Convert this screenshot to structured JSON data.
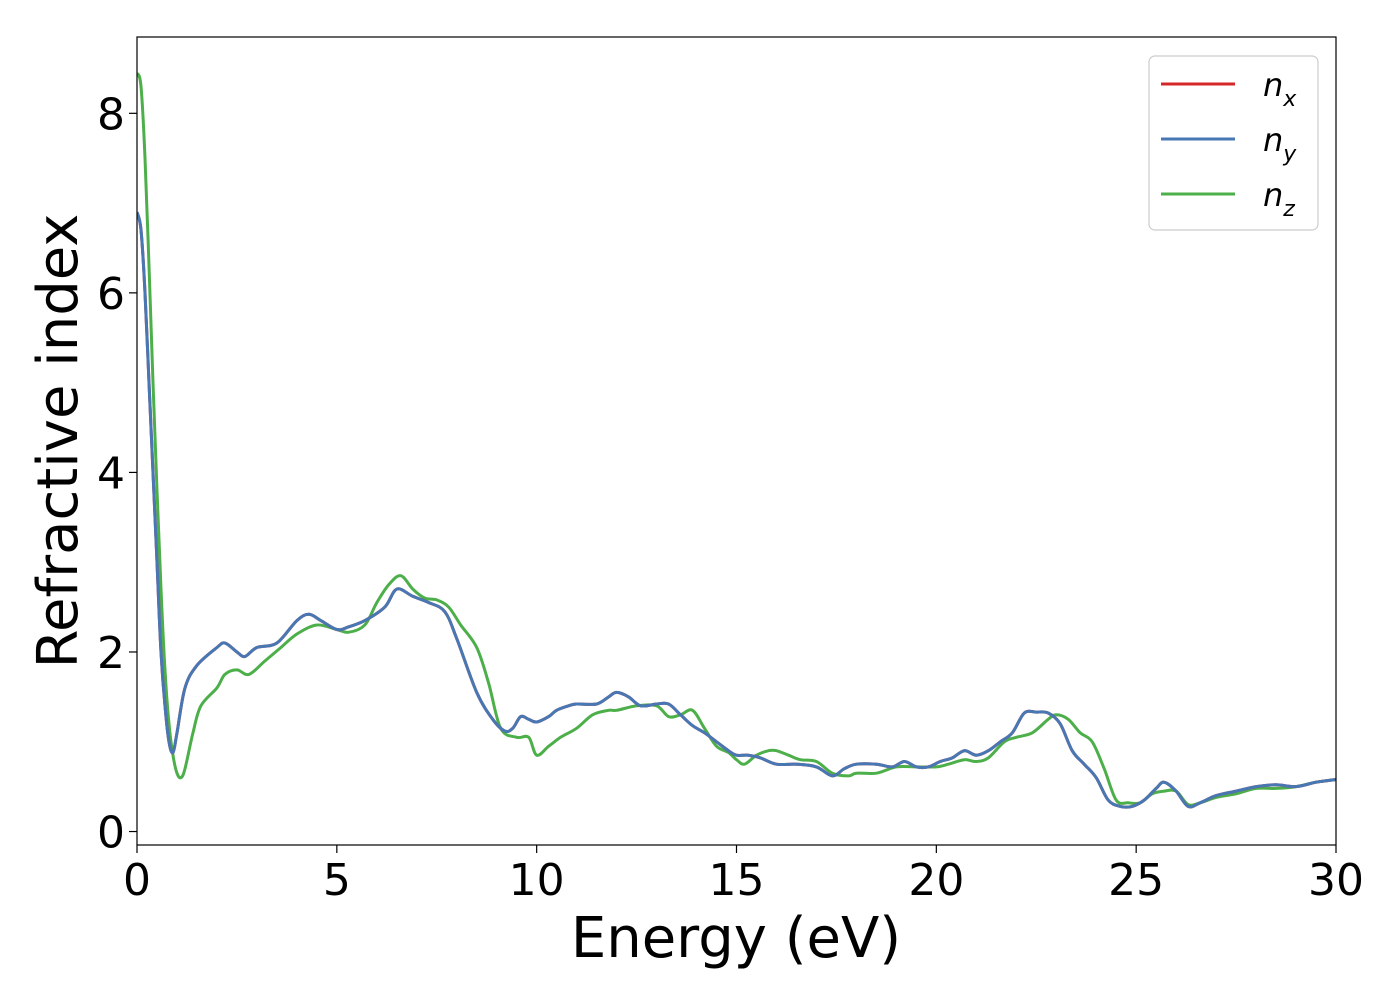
{
  "chart_data": {
    "type": "line",
    "title": "",
    "xlabel": "Energy (eV)",
    "ylabel": "Refractive index",
    "xlim": [
      0,
      30
    ],
    "ylim": [
      -0.15,
      8.85
    ],
    "xticks": [
      "0",
      "5",
      "10",
      "15",
      "20",
      "25",
      "30"
    ],
    "yticks": [
      "0",
      "2",
      "4",
      "6",
      "8"
    ],
    "xtick_values": [
      0,
      5,
      10,
      15,
      20,
      25,
      30
    ],
    "ytick_values": [
      0,
      2,
      4,
      6,
      8
    ],
    "grid": false,
    "legend_position": "top-right",
    "series": [
      {
        "name": "n_x",
        "label_base": "n",
        "label_sub": "x",
        "color": "#d62728",
        "x": [
          0,
          0.1,
          0.2,
          0.3,
          0.4,
          0.5,
          0.6,
          0.7,
          0.8,
          0.9,
          1.0,
          1.2,
          1.5,
          2.0,
          2.2,
          2.5,
          2.7,
          3.0,
          3.5,
          4.0,
          4.3,
          4.6,
          5.0,
          5.3,
          5.7,
          6.2,
          6.5,
          6.9,
          7.3,
          7.7,
          8.0,
          8.5,
          8.9,
          9.2,
          9.4,
          9.6,
          9.8,
          10.0,
          10.3,
          10.5,
          10.8,
          11.0,
          11.5,
          11.8,
          12.0,
          12.3,
          12.6,
          13.0,
          13.3,
          13.6,
          13.9,
          14.2,
          14.5,
          14.8,
          15.0,
          15.3,
          15.6,
          16.0,
          16.5,
          17.0,
          17.4,
          17.7,
          18.0,
          18.5,
          18.9,
          19.2,
          19.5,
          19.8,
          20.1,
          20.4,
          20.7,
          21.0,
          21.3,
          21.6,
          21.9,
          22.2,
          22.5,
          22.8,
          23.1,
          23.4,
          23.7,
          24.0,
          24.3,
          24.6,
          24.9,
          25.2,
          25.5,
          25.7,
          26.0,
          26.3,
          26.6,
          27.0,
          27.5,
          28.0,
          28.5,
          29.0,
          29.5,
          30.0
        ],
        "y": [
          6.9,
          6.7,
          6.0,
          5.0,
          4.0,
          3.0,
          2.0,
          1.4,
          1.0,
          0.88,
          1.1,
          1.6,
          1.85,
          2.05,
          2.1,
          2.0,
          1.95,
          2.05,
          2.1,
          2.35,
          2.42,
          2.35,
          2.25,
          2.28,
          2.35,
          2.5,
          2.7,
          2.62,
          2.55,
          2.45,
          2.15,
          1.55,
          1.25,
          1.12,
          1.15,
          1.28,
          1.25,
          1.22,
          1.28,
          1.35,
          1.4,
          1.42,
          1.42,
          1.5,
          1.55,
          1.5,
          1.4,
          1.42,
          1.42,
          1.3,
          1.18,
          1.1,
          1.0,
          0.9,
          0.85,
          0.85,
          0.82,
          0.75,
          0.75,
          0.72,
          0.62,
          0.7,
          0.75,
          0.75,
          0.72,
          0.78,
          0.72,
          0.72,
          0.78,
          0.82,
          0.9,
          0.85,
          0.9,
          1.0,
          1.1,
          1.32,
          1.33,
          1.32,
          1.2,
          0.9,
          0.75,
          0.6,
          0.35,
          0.28,
          0.28,
          0.35,
          0.48,
          0.55,
          0.45,
          0.28,
          0.32,
          0.4,
          0.45,
          0.5,
          0.52,
          0.5,
          0.55,
          0.58
        ]
      },
      {
        "name": "n_y",
        "label_base": "n",
        "label_sub": "y",
        "color": "#4878b4",
        "x": [
          0,
          0.1,
          0.2,
          0.3,
          0.4,
          0.5,
          0.6,
          0.7,
          0.8,
          0.9,
          1.0,
          1.2,
          1.5,
          2.0,
          2.2,
          2.5,
          2.7,
          3.0,
          3.5,
          4.0,
          4.3,
          4.6,
          5.0,
          5.3,
          5.7,
          6.2,
          6.5,
          6.9,
          7.3,
          7.7,
          8.0,
          8.5,
          8.9,
          9.2,
          9.4,
          9.6,
          9.8,
          10.0,
          10.3,
          10.5,
          10.8,
          11.0,
          11.5,
          11.8,
          12.0,
          12.3,
          12.6,
          13.0,
          13.3,
          13.6,
          13.9,
          14.2,
          14.5,
          14.8,
          15.0,
          15.3,
          15.6,
          16.0,
          16.5,
          17.0,
          17.4,
          17.7,
          18.0,
          18.5,
          18.9,
          19.2,
          19.5,
          19.8,
          20.1,
          20.4,
          20.7,
          21.0,
          21.3,
          21.6,
          21.9,
          22.2,
          22.5,
          22.8,
          23.1,
          23.4,
          23.7,
          24.0,
          24.3,
          24.6,
          24.9,
          25.2,
          25.5,
          25.7,
          26.0,
          26.3,
          26.6,
          27.0,
          27.5,
          28.0,
          28.5,
          29.0,
          29.5,
          30.0
        ],
        "y": [
          6.9,
          6.7,
          6.0,
          5.0,
          4.0,
          3.0,
          2.0,
          1.4,
          1.0,
          0.88,
          1.1,
          1.6,
          1.85,
          2.05,
          2.1,
          2.0,
          1.95,
          2.05,
          2.1,
          2.35,
          2.42,
          2.35,
          2.25,
          2.28,
          2.35,
          2.5,
          2.7,
          2.62,
          2.55,
          2.45,
          2.15,
          1.55,
          1.25,
          1.12,
          1.15,
          1.28,
          1.25,
          1.22,
          1.28,
          1.35,
          1.4,
          1.42,
          1.42,
          1.5,
          1.55,
          1.5,
          1.4,
          1.42,
          1.42,
          1.3,
          1.18,
          1.1,
          1.0,
          0.9,
          0.85,
          0.85,
          0.82,
          0.75,
          0.75,
          0.72,
          0.62,
          0.7,
          0.75,
          0.75,
          0.72,
          0.78,
          0.72,
          0.72,
          0.78,
          0.82,
          0.9,
          0.85,
          0.9,
          1.0,
          1.1,
          1.32,
          1.33,
          1.32,
          1.2,
          0.9,
          0.75,
          0.6,
          0.35,
          0.28,
          0.28,
          0.35,
          0.48,
          0.55,
          0.45,
          0.28,
          0.32,
          0.4,
          0.45,
          0.5,
          0.52,
          0.5,
          0.55,
          0.58
        ]
      },
      {
        "name": "n_z",
        "label_base": "n",
        "label_sub": "z",
        "color": "#4daf4a",
        "x": [
          0,
          0.1,
          0.2,
          0.3,
          0.4,
          0.5,
          0.6,
          0.7,
          0.8,
          0.9,
          1.0,
          1.1,
          1.2,
          1.4,
          1.6,
          2.0,
          2.2,
          2.5,
          2.8,
          3.2,
          3.6,
          4.0,
          4.5,
          5.0,
          5.3,
          5.7,
          6.0,
          6.3,
          6.6,
          6.9,
          7.2,
          7.5,
          7.8,
          8.1,
          8.5,
          8.8,
          9.1,
          9.5,
          9.8,
          10.0,
          10.3,
          10.6,
          11.0,
          11.4,
          11.8,
          12.0,
          12.5,
          13.0,
          13.3,
          13.6,
          13.9,
          14.2,
          14.5,
          14.8,
          15.0,
          15.2,
          15.5,
          15.8,
          16.0,
          16.3,
          16.6,
          17.0,
          17.4,
          17.8,
          18.0,
          18.5,
          19.0,
          19.5,
          20.0,
          20.3,
          20.7,
          21.0,
          21.3,
          21.7,
          22.0,
          22.4,
          22.8,
          23.0,
          23.3,
          23.6,
          23.9,
          24.2,
          24.5,
          24.8,
          25.1,
          25.4,
          25.7,
          26.0,
          26.3,
          26.6,
          27.0,
          27.5,
          28.0,
          28.5,
          29.0,
          29.5,
          30.0
        ],
        "y": [
          8.45,
          8.3,
          7.5,
          6.3,
          5.0,
          3.8,
          2.7,
          1.8,
          1.2,
          0.85,
          0.65,
          0.6,
          0.7,
          1.1,
          1.4,
          1.6,
          1.75,
          1.8,
          1.75,
          1.9,
          2.05,
          2.2,
          2.3,
          2.25,
          2.22,
          2.3,
          2.55,
          2.75,
          2.85,
          2.7,
          2.6,
          2.58,
          2.5,
          2.3,
          2.05,
          1.65,
          1.15,
          1.05,
          1.05,
          0.85,
          0.95,
          1.05,
          1.15,
          1.3,
          1.35,
          1.35,
          1.4,
          1.4,
          1.28,
          1.3,
          1.35,
          1.15,
          0.95,
          0.88,
          0.8,
          0.75,
          0.85,
          0.9,
          0.9,
          0.85,
          0.8,
          0.78,
          0.65,
          0.62,
          0.65,
          0.65,
          0.72,
          0.72,
          0.72,
          0.75,
          0.8,
          0.78,
          0.82,
          1.0,
          1.05,
          1.1,
          1.25,
          1.3,
          1.25,
          1.1,
          1.0,
          0.7,
          0.35,
          0.32,
          0.32,
          0.42,
          0.45,
          0.45,
          0.3,
          0.32,
          0.38,
          0.42,
          0.48,
          0.48,
          0.5,
          0.55,
          0.58
        ]
      }
    ]
  }
}
